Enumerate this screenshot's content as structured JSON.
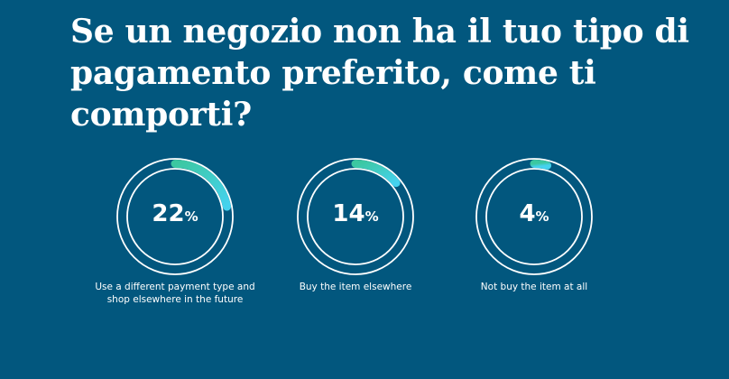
{
  "title": "Se un negozio non ha il tuo tipo di pagamento preferito, come ti comporti?",
  "colors": {
    "background": "#02577e",
    "ring": "#ffffff",
    "arc_start": "#3cc7a0",
    "arc_end": "#45d2ef"
  },
  "chart_data": {
    "type": "pie",
    "items": [
      {
        "value": 22,
        "value_text": "22",
        "unit": "%",
        "label": "Use a different payment type and shop elsewhere in the future"
      },
      {
        "value": 14,
        "value_text": "14",
        "unit": "%",
        "label": "Buy the item elsewhere"
      },
      {
        "value": 4,
        "value_text": "4",
        "unit": "%",
        "label": "Not buy the item at all"
      }
    ]
  }
}
